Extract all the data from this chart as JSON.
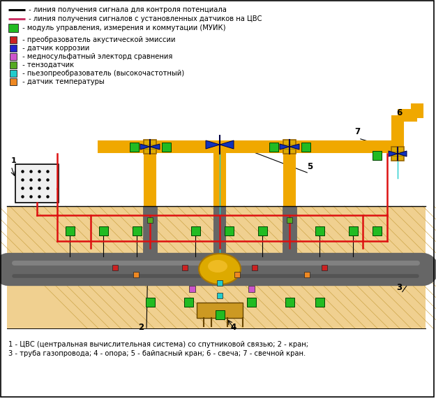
{
  "background_color": "#ffffff",
  "legend_items": [
    {
      "color": "#000000",
      "type": "line",
      "label": " - линия получения сигнала для контроля потенциала"
    },
    {
      "color": "#cc3366",
      "type": "line",
      "label": " - линия получения сигналов с установленных датчиков на ЦВС"
    },
    {
      "color": "#22bb22",
      "type": "rect",
      "label": " - модуль управления, измерения и коммутации (МУИК)"
    },
    {
      "color": "#cc2222",
      "type": "rect_small",
      "label": " - преобразователь акустической эмиссии"
    },
    {
      "color": "#2222cc",
      "type": "rect_small",
      "label": " - датчик коррозии"
    },
    {
      "color": "#cc55cc",
      "type": "rect_small",
      "label": " - медносульфатный электорд сравнения"
    },
    {
      "color": "#55aa22",
      "type": "rect_small",
      "label": " - тензодатчик"
    },
    {
      "color": "#22cccc",
      "type": "rect_small",
      "label": " - пьезопреобразователь (высокочастотный)"
    },
    {
      "color": "#ee8822",
      "type": "rect_small",
      "label": " - датчик температуры"
    }
  ],
  "caption_line1": "1 - ЦВС (центральная вычислительная система) со спутниковой связью; 2 - кран;",
  "caption_line2": "3 - труба газопровода; 4 - опора; 5 - байпасный кран; 6 - свеча; 7 - свечной кран.",
  "pipe_color": "#f0a800",
  "pipe_dark": "#c88000",
  "underground_color": "#666666",
  "underground_dark": "#333333",
  "ground_fill": "#f0d090",
  "ground_hatch": "#c8a040",
  "red_line": "#dd1111",
  "valve_blue": "#1133bb",
  "muik_color": "#22bb22",
  "ae_color": "#cc2222",
  "corr_color": "#2222cc",
  "mse_color": "#cc55cc",
  "tenzo_color": "#55aa22",
  "piezo_color": "#22cccc",
  "temp_color": "#ee8822",
  "support_color": "#cc9922",
  "black_line": "#000000",
  "pink_line": "#cc3366"
}
